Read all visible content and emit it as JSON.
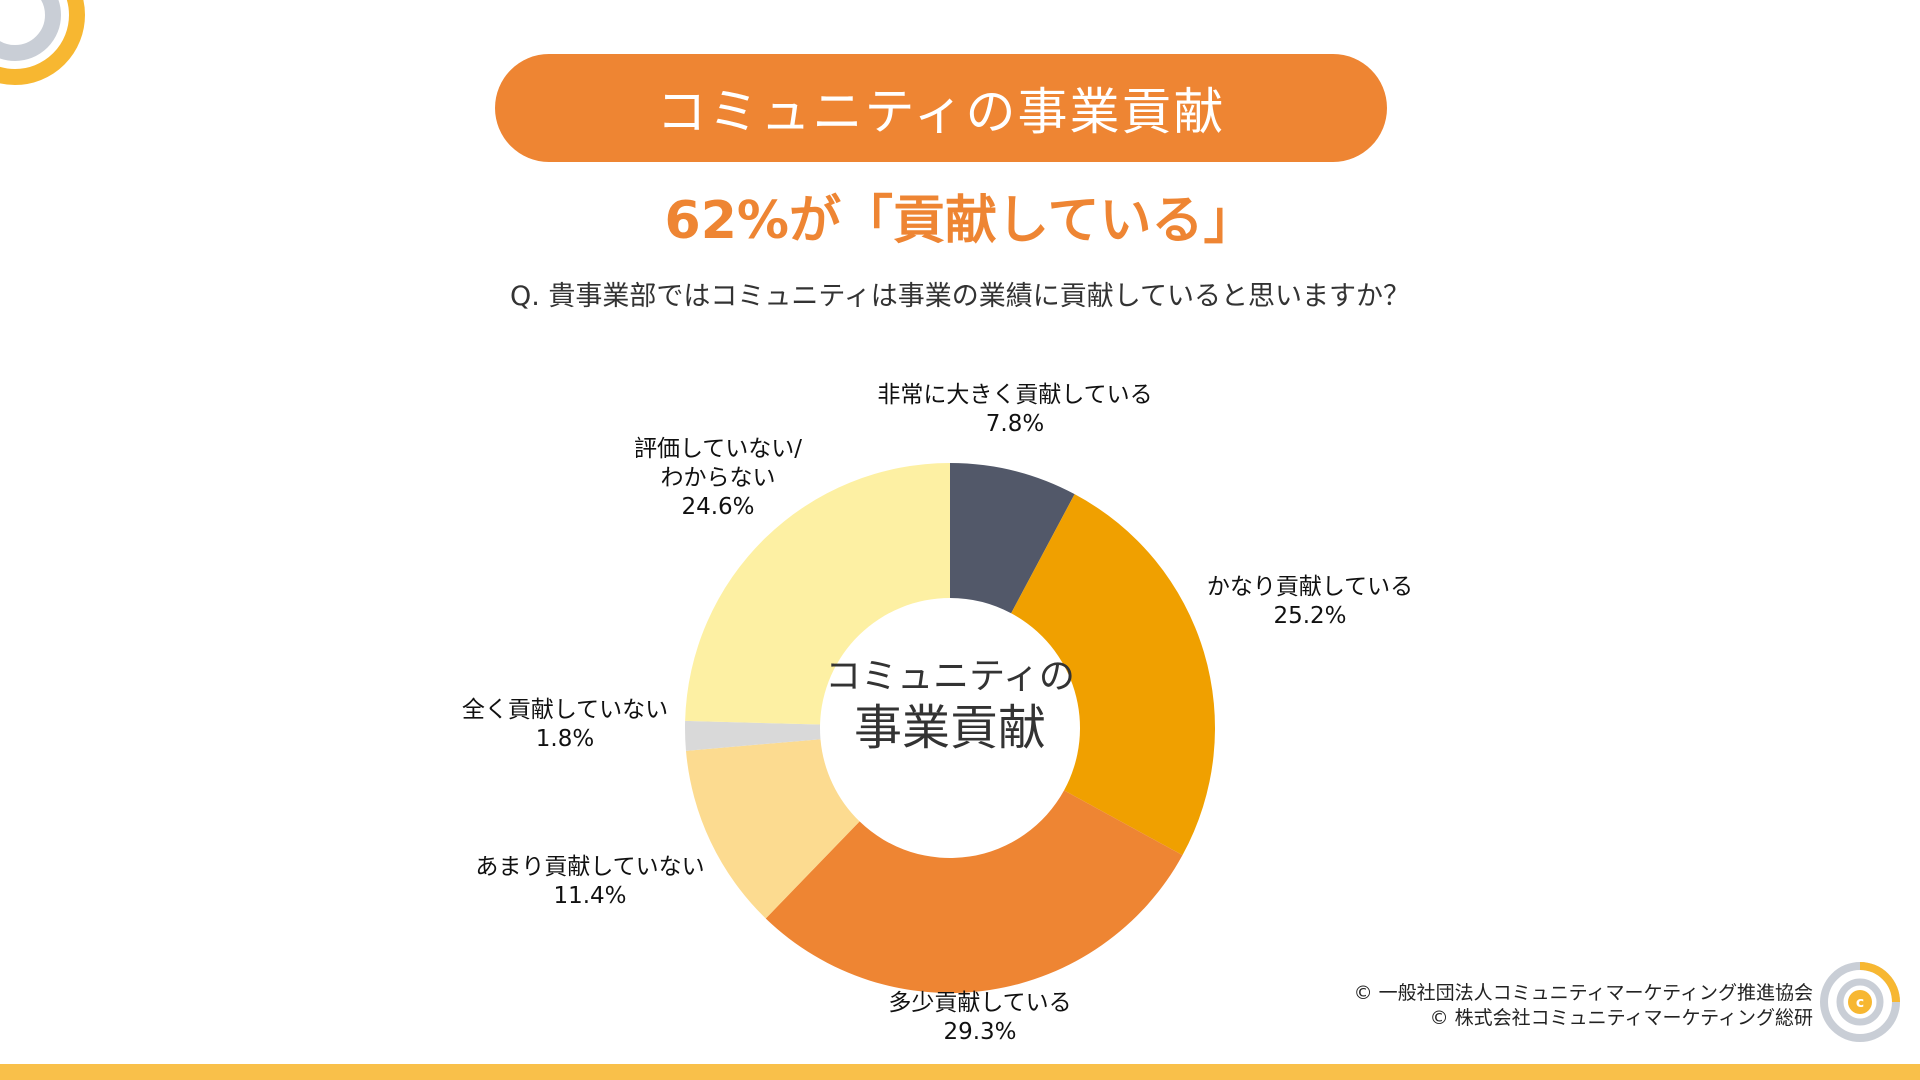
{
  "title": "コミュニティの事業貢献",
  "headline": "62%が「貢献している」",
  "question": "Q. 貴事業部ではコミュニティは事業の業績に貢献していると思いますか？",
  "center_label": {
    "line1": "コミュニティの",
    "line2": "事業貢献"
  },
  "colors": {
    "title_bg": "#EE8533",
    "headline": "#EE8533",
    "bottom_bar": "#F9C04A",
    "logo_yellow": "#F7B731",
    "logo_gray": "#C9CED6"
  },
  "chart_data": {
    "type": "pie",
    "donut": true,
    "categories": [
      "非常に大きく貢献している",
      "かなり貢献している",
      "多少貢献している",
      "あまり貢献していない",
      "全く貢献していない",
      "評価していない/わからない"
    ],
    "values": [
      7.8,
      25.2,
      29.3,
      11.4,
      1.8,
      24.6
    ],
    "value_labels": [
      "7.8%",
      "25.2%",
      "29.3%",
      "11.4%",
      "1.8%",
      "24.6%"
    ],
    "label_lines": [
      [
        "非常に大きく貢献している"
      ],
      [
        "かなり貢献している"
      ],
      [
        "多少貢献している"
      ],
      [
        "あまり貢献していない"
      ],
      [
        "全く貢献していない"
      ],
      [
        "評価していない/",
        "わからない"
      ]
    ],
    "colors": [
      "#525869",
      "#F0A000",
      "#EE8533",
      "#FCDB90",
      "#D9D9D9",
      "#FDF0A3"
    ],
    "start_angle": "12 o'clock",
    "direction": "clockwise"
  },
  "footer": {
    "line1": "© 一般社団法人コミュニティマーケティング推進協会",
    "line2": "© 株式会社コミュニティマーケティング総研"
  }
}
